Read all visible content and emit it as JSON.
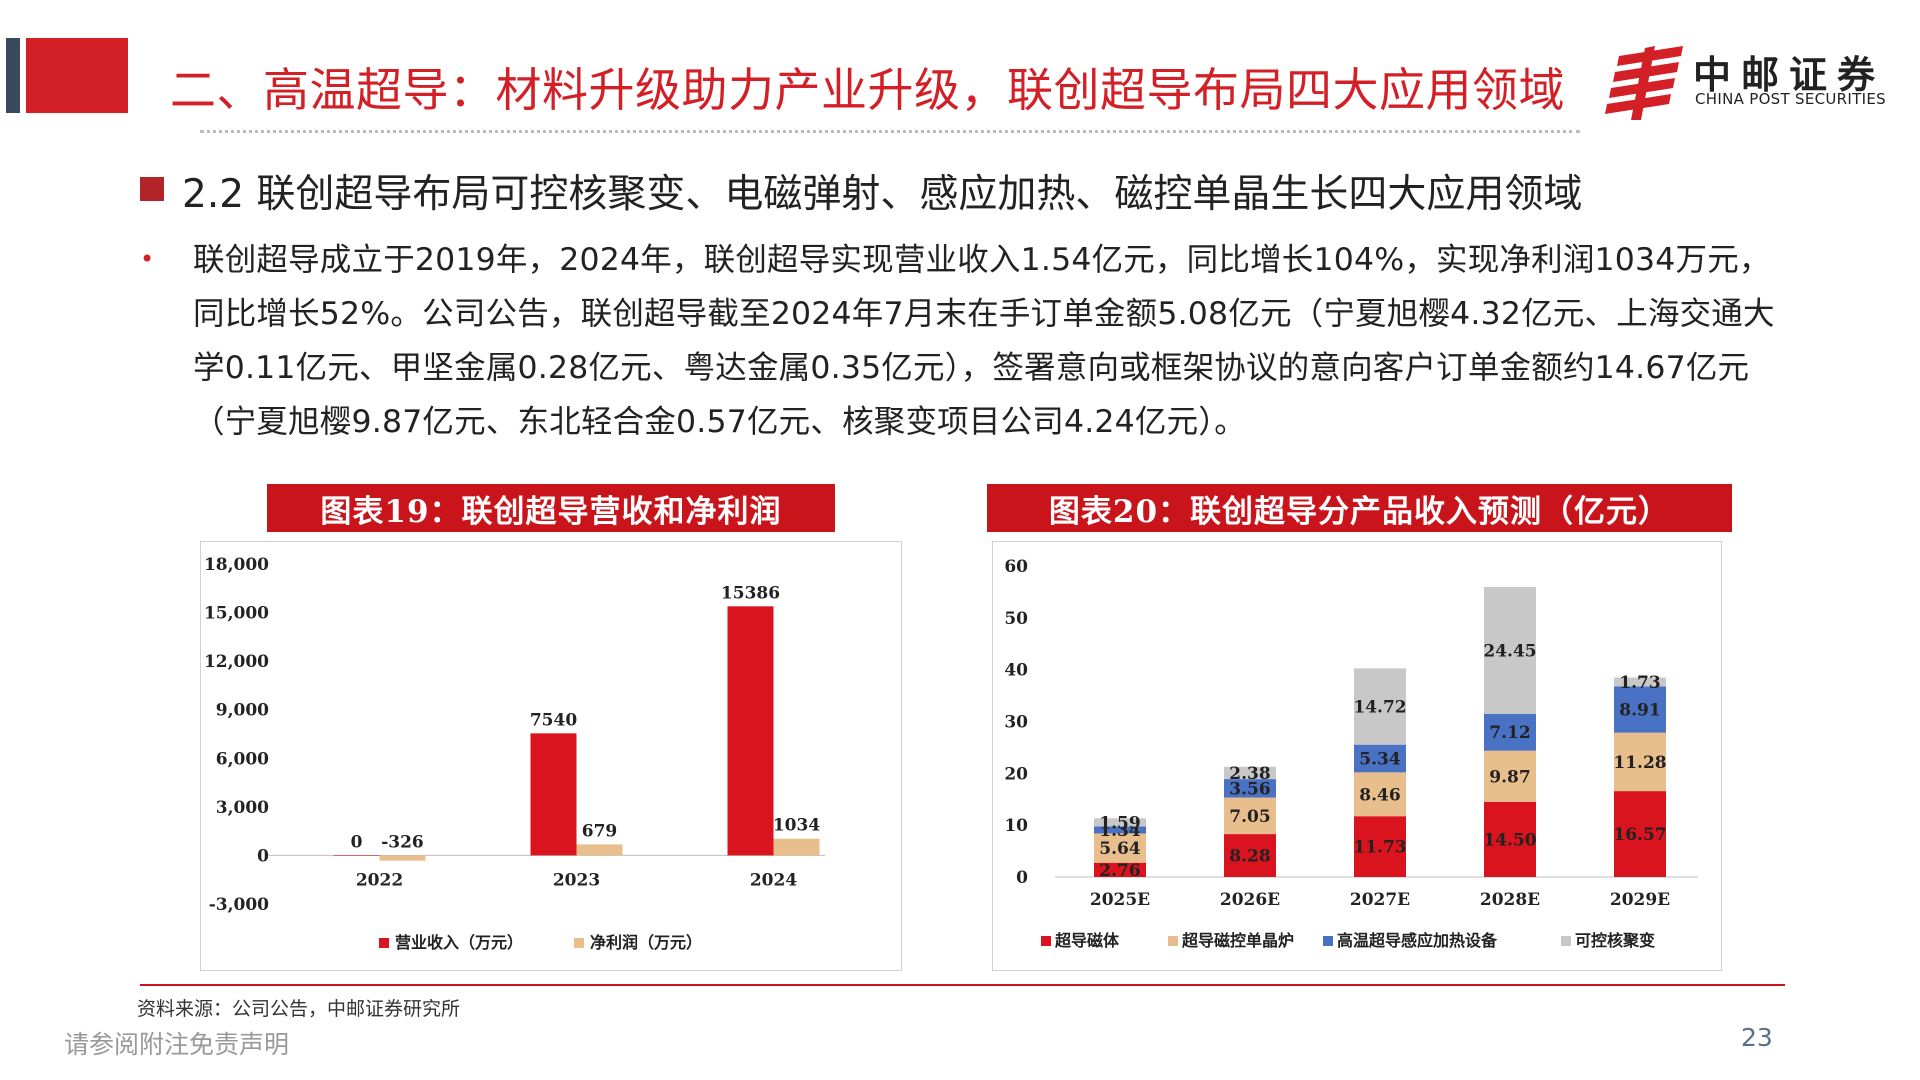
{
  "header": {
    "title": "二、高温超导：材料升级助力产业升级，联创超导布局四大应用领域",
    "logo_cn": "中邮证券",
    "logo_en": "CHINA POST SECURITIES"
  },
  "section": {
    "heading": "2.2 联创超导布局可控核聚变、电磁弹射、感应加热、磁控单晶生长四大应用领域",
    "bullet": "联创超导成立于2019年，2024年，联创超导实现营业收入1.54亿元，同比增长104%，实现净利润1034万元，同比增长52%。公司公告，联创超导截至2024年7月末在手订单金额5.08亿元（宁夏旭樱4.32亿元、上海交通大学0.11亿元、甲坚金属0.28亿元、粤达金属0.35亿元），签署意向或框架协议的意向客户订单金额约14.67亿元（宁夏旭樱9.87亿元、东北轻合金0.57亿元、核聚变项目公司4.24亿元）。"
  },
  "chart_data": [
    {
      "type": "bar",
      "title": "图表19：联创超导营收和净利润",
      "categories": [
        "2022",
        "2023",
        "2024"
      ],
      "series": [
        {
          "name": "营业收入（万元）",
          "values": [
            0,
            7540,
            15386
          ],
          "color": "#d9141e"
        },
        {
          "name": "净利润（万元）",
          "values": [
            -326,
            679,
            1034
          ],
          "color": "#e8be8c"
        }
      ],
      "data_labels": [
        [
          "0",
          "7540",
          "15386"
        ],
        [
          "-326",
          "679",
          "1034"
        ]
      ],
      "ylim": [
        -3000,
        18000
      ],
      "yticks": [
        -3000,
        0,
        3000,
        6000,
        9000,
        12000,
        15000,
        18000
      ],
      "ytick_labels": [
        "-3,000",
        "0",
        "3,000",
        "6,000",
        "9,000",
        "12,000",
        "15,000",
        "18,000"
      ],
      "grid": false,
      "legend": "bottom"
    },
    {
      "type": "bar",
      "stacked": true,
      "title": "图表20：联创超导分产品收入预测（亿元）",
      "categories": [
        "2025E",
        "2026E",
        "2027E",
        "2028E",
        "2029E"
      ],
      "series": [
        {
          "name": "超导磁体",
          "values": [
            2.76,
            8.28,
            11.73,
            14.5,
            16.57
          ],
          "color": "#d9141e"
        },
        {
          "name": "超导磁控单晶炉",
          "values": [
            5.64,
            7.05,
            8.46,
            9.87,
            11.28
          ],
          "color": "#e8be8c"
        },
        {
          "name": "高温超导感应加热设备",
          "values": [
            1.34,
            3.56,
            5.34,
            7.12,
            8.91
          ],
          "color": "#4a72c4"
        },
        {
          "name": "可控核聚变",
          "values": [
            1.59,
            2.38,
            14.72,
            24.45,
            1.73
          ],
          "color": "#c8c8c8"
        }
      ],
      "data_labels": [
        [
          "2.76",
          "8.28",
          "11.73",
          "14.50",
          "16.57"
        ],
        [
          "5.64",
          "7.05",
          "8.46",
          "9.87",
          "11.28"
        ],
        [
          "1.34",
          "3.56",
          "5.34",
          "7.12",
          "8.91"
        ],
        [
          "1.59",
          "2.38",
          "14.72",
          "24.45",
          "1.73"
        ]
      ],
      "ylim": [
        0,
        60
      ],
      "yticks": [
        0,
        10,
        20,
        30,
        40,
        50,
        60
      ],
      "ytick_labels": [
        "0",
        "10",
        "20",
        "30",
        "40",
        "50",
        "60"
      ],
      "grid": false,
      "legend": "bottom"
    }
  ],
  "footer": {
    "source": "资料来源：公司公告，中邮证券研究所",
    "disclaimer": "请参阅附注免责声明",
    "page_number": "23"
  },
  "colors": {
    "brand_red": "#d32027",
    "banner_red": "#c9141c",
    "dark_bar": "#3a4a5c"
  },
  "icons": {
    "logo": "china-post-logo-icon",
    "section_marker": "square-bullet-icon",
    "bullet": "dot-bullet-icon"
  }
}
